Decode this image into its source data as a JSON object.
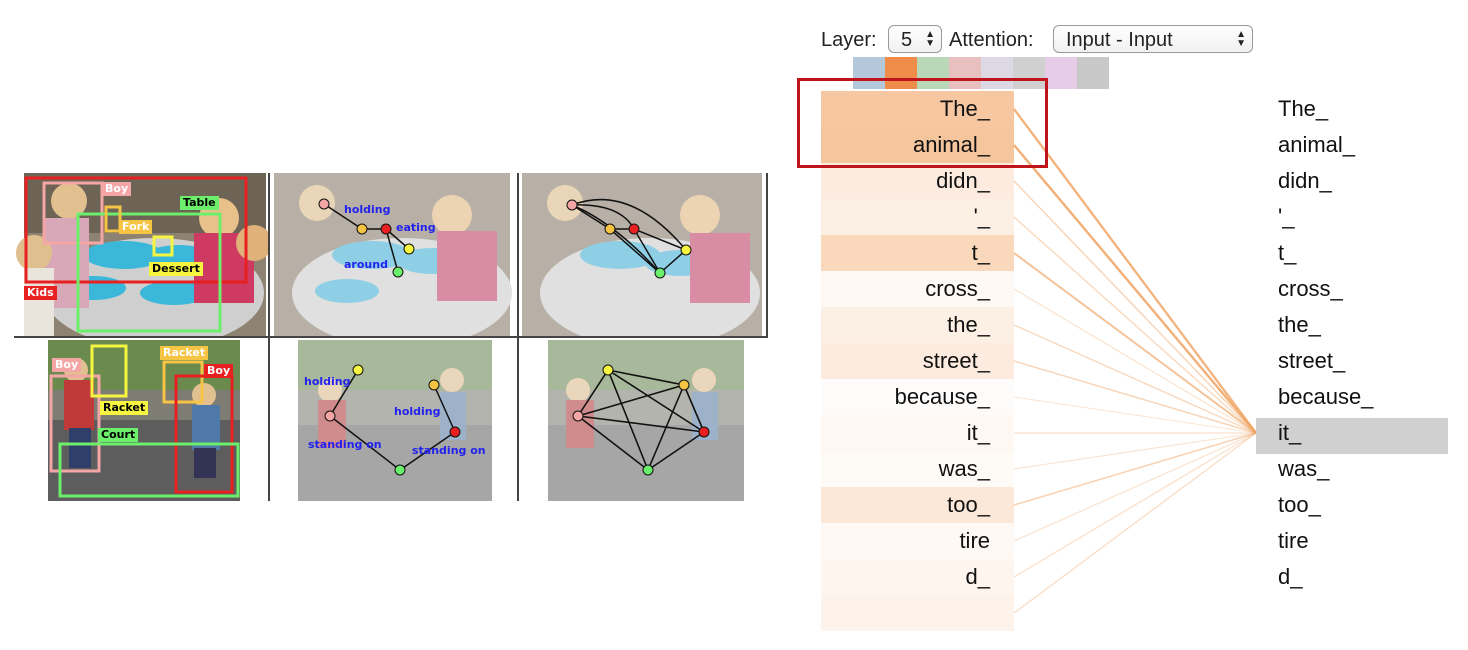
{
  "left_figure": {
    "row1": {
      "boxes": [
        {
          "label": "Boy",
          "color": "#f4a6a6",
          "text_color": "#ffffff"
        },
        {
          "label": "Table",
          "color": "#6cf06c",
          "text_color": "#000000"
        },
        {
          "label": "Fork",
          "color": "#f6c445",
          "text_color": "#ffffff"
        },
        {
          "label": "Dessert",
          "color": "#f6f640",
          "text_color": "#000000"
        },
        {
          "label": "Kids",
          "color": "#e82020",
          "text_color": "#ffffff"
        }
      ],
      "relations": [
        "holding",
        "eating",
        "around"
      ]
    },
    "row2": {
      "boxes": [
        {
          "label": "Boy",
          "color": "#f4a6a6",
          "text_color": "#ffffff"
        },
        {
          "label": "Racket",
          "color": "#f6c445",
          "text_color": "#ffffff"
        },
        {
          "label": "Boy",
          "color": "#e82020",
          "text_color": "#ffffff"
        },
        {
          "label": "Racket",
          "color": "#f6f640",
          "text_color": "#000000"
        },
        {
          "label": "Court",
          "color": "#6cf06c",
          "text_color": "#000000"
        }
      ],
      "relations": [
        "holding",
        "holding",
        "standing on",
        "standing on"
      ]
    }
  },
  "controls": {
    "layer_label": "Layer:",
    "layer_value": "5",
    "attention_label": "Attention:",
    "attention_value": "Input - Input"
  },
  "head_colors": [
    "#b4c8dc",
    "#f08c4a",
    "#b8d8b8",
    "#e8c0c0",
    "#dcd8e4",
    "#d0d0d0",
    "#e6cce6",
    "#c8c8c8"
  ],
  "attention_color": "#f0a464",
  "tokens": [
    "The_",
    "animal_",
    "didn_",
    "'_",
    "t_",
    "cross_",
    "the_",
    "street_",
    "because_",
    "it_",
    "was_",
    "too_",
    "tire",
    "d_",
    ""
  ],
  "target_tokens": [
    "The_",
    "animal_",
    "didn_",
    "'_",
    "t_",
    "cross_",
    "the_",
    "street_",
    "because_",
    "it_",
    "was_",
    "too_",
    "tire",
    "d_"
  ],
  "selected_token": "it_",
  "attention_weights": [
    0.85,
    0.88,
    0.3,
    0.25,
    0.6,
    0.1,
    0.25,
    0.3,
    0.05,
    0.12,
    0.08,
    0.35,
    0.1,
    0.15,
    0.18
  ]
}
